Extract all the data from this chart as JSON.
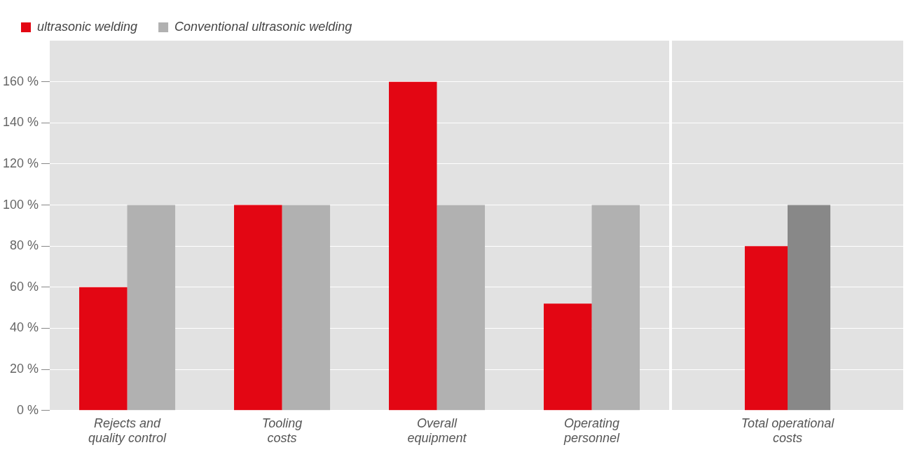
{
  "chart_data": [
    {
      "type": "bar",
      "categories": [
        "Rejects and quality control",
        "Tooling costs",
        "Overall equipment",
        "Operating personnel"
      ],
      "series": [
        {
          "name": "ultrasonic welding",
          "color": "#e30613",
          "values": [
            60,
            100,
            160,
            52
          ]
        },
        {
          "name": "Conventional ultrasonic welding",
          "color": "#b1b1b1",
          "values": [
            100,
            100,
            100,
            100
          ]
        }
      ],
      "ylim": [
        0,
        180
      ],
      "yticks": [
        {
          "value": 0,
          "label": "0 %"
        },
        {
          "value": 20,
          "label": "20 %"
        },
        {
          "value": 40,
          "label": "40 %"
        },
        {
          "value": 60,
          "label": "60 %"
        },
        {
          "value": 80,
          "label": "80 %"
        },
        {
          "value": 100,
          "label": "100 %"
        },
        {
          "value": 120,
          "label": "120 %"
        },
        {
          "value": 140,
          "label": "140 %"
        },
        {
          "value": 160,
          "label": "160 %"
        }
      ],
      "grid": "y",
      "legend": "top left"
    },
    {
      "type": "bar",
      "categories": [
        "Total operational costs"
      ],
      "series": [
        {
          "color": "#e30613",
          "values": [
            80
          ]
        },
        {
          "color": "#888888",
          "values": [
            100
          ]
        }
      ],
      "ylim": [
        0,
        180
      ],
      "yticks": [
        0,
        20,
        40,
        60,
        80,
        100,
        120,
        140,
        160
      ],
      "grid": "y",
      "tick_labels": "x"
    }
  ]
}
